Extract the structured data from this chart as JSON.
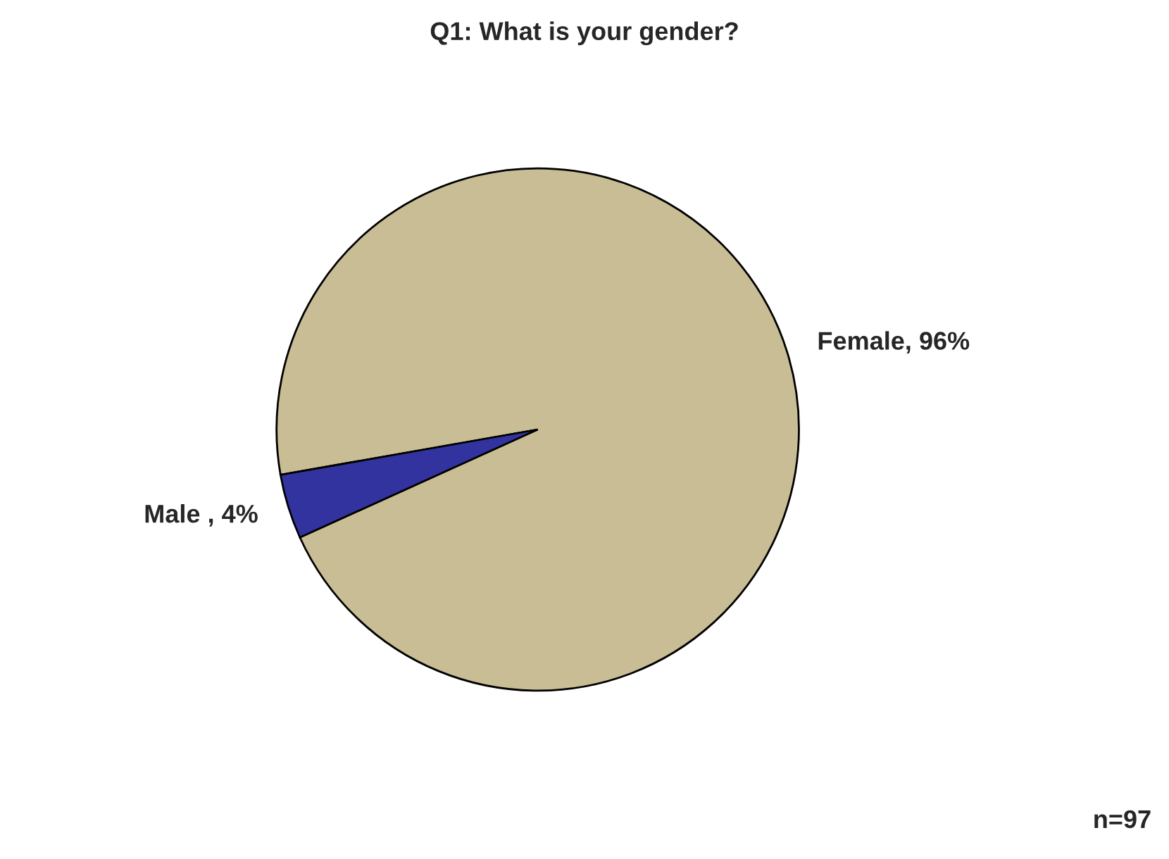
{
  "chart_data": {
    "type": "pie",
    "title": "Q1: What is your gender?",
    "categories": [
      "Female, 96%",
      "Male , 4%"
    ],
    "values": [
      96,
      4
    ],
    "colors": [
      "#c8bd94",
      "#3333a0"
    ],
    "annotations": [
      "n=97"
    ]
  }
}
